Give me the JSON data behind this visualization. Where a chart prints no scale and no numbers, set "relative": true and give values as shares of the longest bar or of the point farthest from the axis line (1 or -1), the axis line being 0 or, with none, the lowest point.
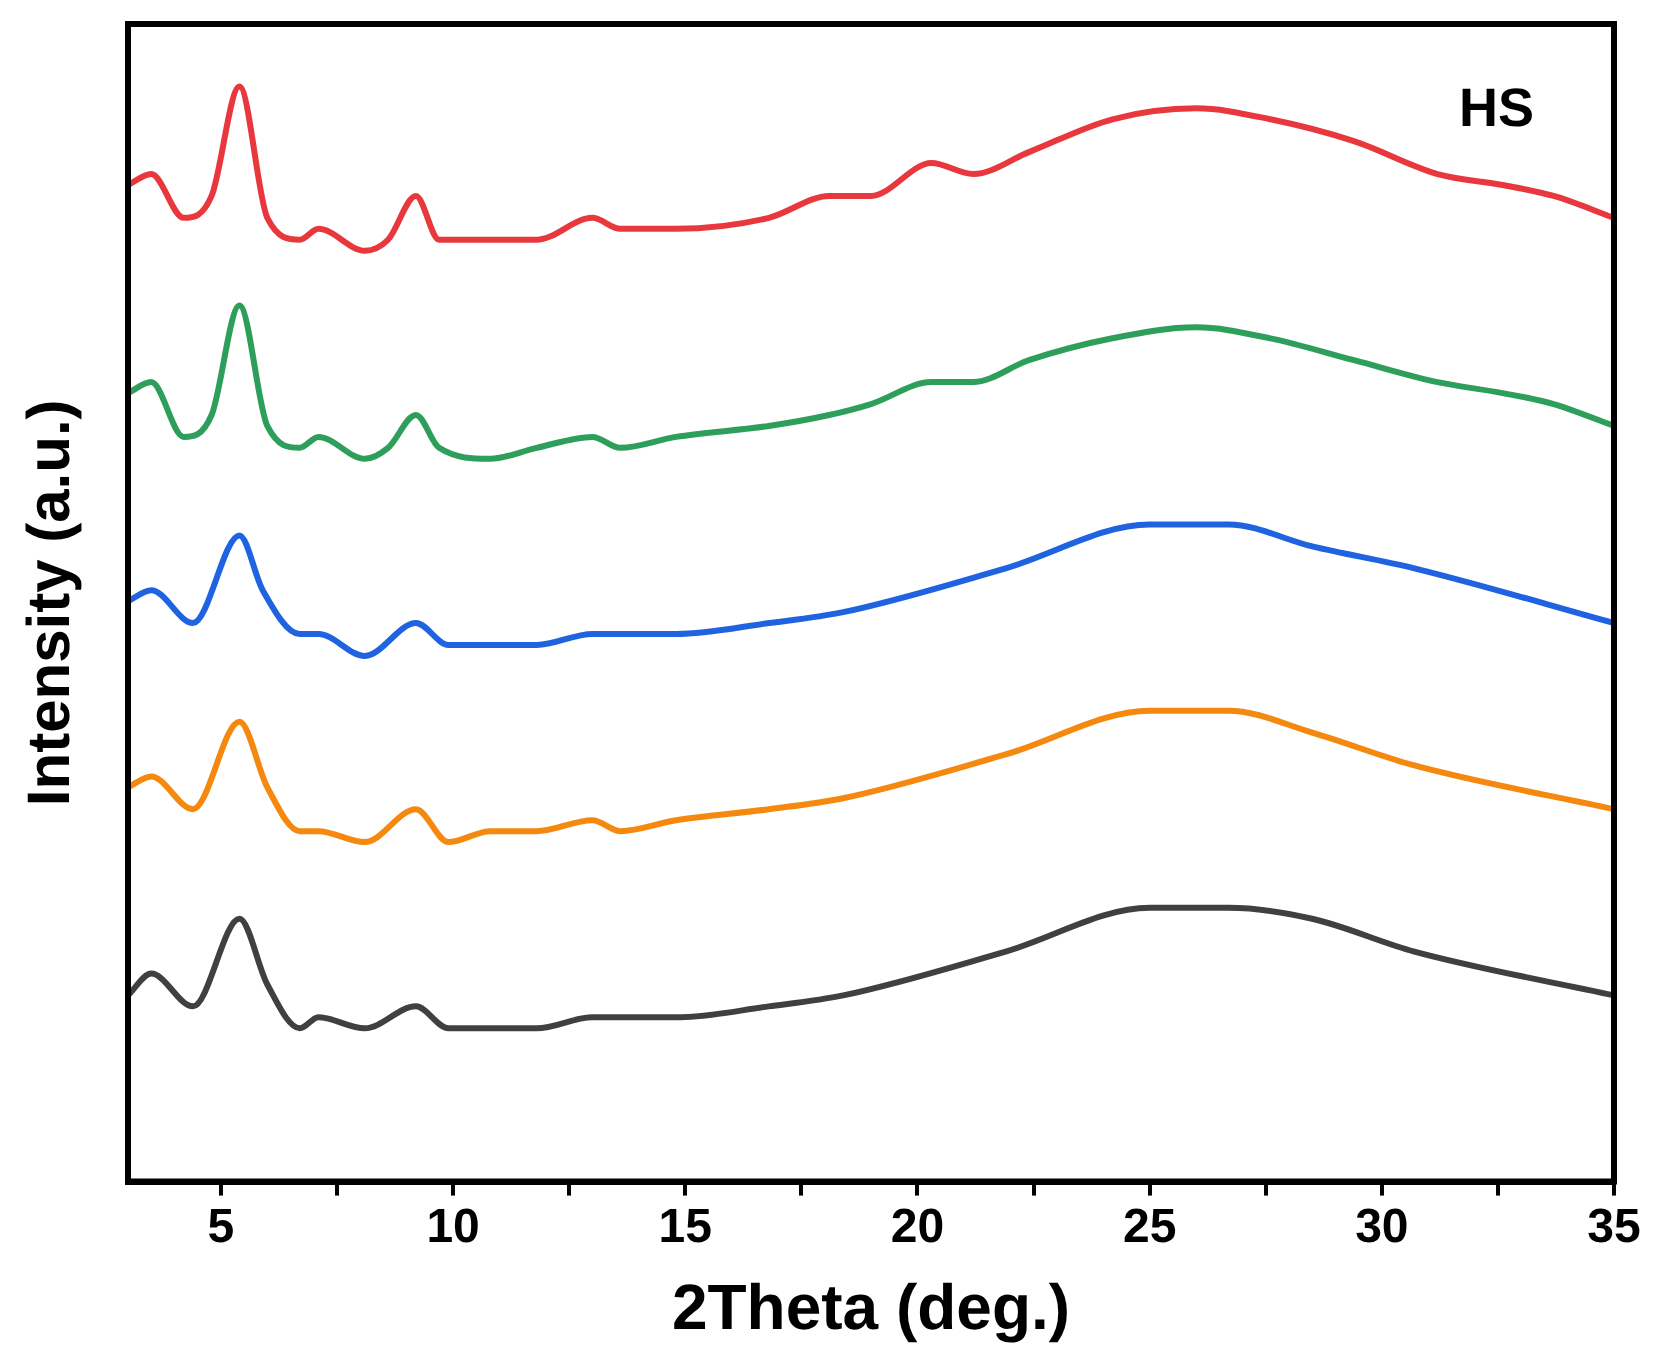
{
  "chart_data": {
    "type": "line",
    "xlabel": "2Theta (deg.)",
    "ylabel": "Intensity (a.u.)",
    "annotations": [
      "HS"
    ],
    "relative": true,
    "grid": false,
    "legend": false,
    "marker": "none",
    "line_style": "solid",
    "xlim": [
      3,
      35
    ],
    "xticks": [
      5,
      {
        "value": 7.5,
        "label": null
      },
      10,
      {
        "value": 12.5,
        "label": null
      },
      15,
      {
        "value": 17.5,
        "label": null
      },
      20,
      {
        "value": 22.5,
        "label": null
      },
      25,
      {
        "value": 27.5,
        "label": null
      },
      30,
      {
        "value": 32.5,
        "label": null
      },
      35
    ],
    "series": [
      {
        "color": "#e8383d",
        "x": [
          3,
          3.5,
          4.2,
          4.8,
          5.4,
          6,
          6.7,
          7.1,
          8.1,
          8.6,
          9.2,
          9.7,
          10.8,
          11.8,
          13,
          13.6,
          14.8,
          16.8,
          18.1,
          19,
          20.3,
          21.2,
          22.4,
          24.2,
          26,
          27.6,
          29.4,
          31.2,
          32.6,
          33.7,
          35
        ],
        "values": [
          0.91,
          0.92,
          0.88,
          0.9,
          1,
          0.88,
          0.86,
          0.87,
          0.85,
          0.86,
          0.9,
          0.86,
          0.86,
          0.86,
          0.88,
          0.87,
          0.87,
          0.88,
          0.9,
          0.9,
          0.93,
          0.92,
          0.94,
          0.97,
          0.98,
          0.97,
          0.95,
          0.92,
          0.91,
          0.9,
          0.88
        ]
      },
      {
        "color": "#2e9e5b",
        "x": [
          3,
          3.5,
          4.2,
          4.8,
          5.4,
          6,
          6.7,
          7.1,
          8.1,
          8.6,
          9.2,
          9.7,
          10.8,
          11.8,
          13,
          13.6,
          14.8,
          16.8,
          18.1,
          19,
          20.3,
          21.2,
          22.4,
          24.2,
          26,
          27.6,
          29.4,
          31.2,
          32.6,
          33.7,
          35
        ],
        "values": [
          0.72,
          0.73,
          0.68,
          0.7,
          0.8,
          0.69,
          0.67,
          0.68,
          0.66,
          0.67,
          0.7,
          0.67,
          0.66,
          0.67,
          0.68,
          0.67,
          0.68,
          0.69,
          0.7,
          0.71,
          0.73,
          0.73,
          0.75,
          0.77,
          0.78,
          0.77,
          0.75,
          0.73,
          0.72,
          0.71,
          0.69
        ]
      },
      {
        "color": "#1f63e0",
        "x": [
          3,
          3.5,
          4.4,
          5.4,
          5.9,
          6.7,
          7.1,
          8.1,
          9.2,
          9.9,
          10.8,
          11.8,
          13,
          13.6,
          14.8,
          16.8,
          18.4,
          21.9,
          25,
          26.7,
          28.5,
          30.7,
          35
        ],
        "values": [
          0.53,
          0.54,
          0.51,
          0.59,
          0.54,
          0.5,
          0.5,
          0.48,
          0.51,
          0.49,
          0.49,
          0.49,
          0.5,
          0.5,
          0.5,
          0.51,
          0.52,
          0.56,
          0.6,
          0.6,
          0.58,
          0.56,
          0.51
        ]
      },
      {
        "color": "#f5890f",
        "x": [
          3,
          3.5,
          4.4,
          5.4,
          6,
          6.7,
          7.1,
          8.1,
          9.2,
          9.9,
          10.8,
          11.8,
          13,
          13.6,
          14.8,
          16.8,
          18.4,
          21.9,
          25,
          26.7,
          28.5,
          30.7,
          35
        ],
        "values": [
          0.36,
          0.37,
          0.34,
          0.42,
          0.36,
          0.32,
          0.32,
          0.31,
          0.34,
          0.31,
          0.32,
          0.32,
          0.33,
          0.32,
          0.33,
          0.34,
          0.35,
          0.39,
          0.43,
          0.43,
          0.41,
          0.38,
          0.34
        ]
      },
      {
        "color": "#404040",
        "x": [
          3,
          3.5,
          4.4,
          5.4,
          6,
          6.7,
          7.1,
          8.1,
          9.2,
          9.9,
          10.8,
          11.8,
          13,
          13.6,
          14.8,
          16.8,
          18.4,
          21.9,
          25,
          26.7,
          28.5,
          30.7,
          35
        ],
        "values": [
          0.17,
          0.19,
          0.16,
          0.24,
          0.18,
          0.14,
          0.15,
          0.14,
          0.16,
          0.14,
          0.14,
          0.14,
          0.15,
          0.15,
          0.15,
          0.16,
          0.17,
          0.21,
          0.25,
          0.25,
          0.24,
          0.21,
          0.17
        ]
      }
    ]
  }
}
